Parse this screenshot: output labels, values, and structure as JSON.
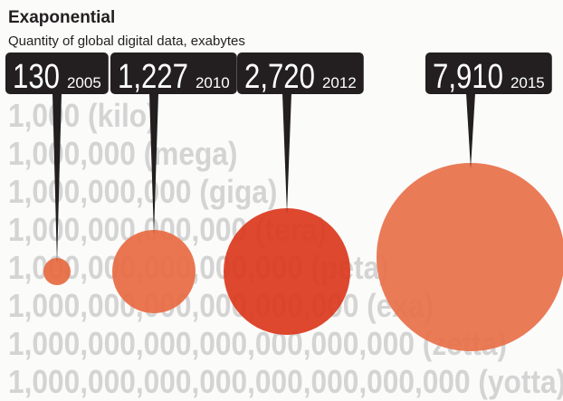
{
  "chart_data": {
    "type": "bubble",
    "title": "Exaponential",
    "subtitle": "Quantity of global digital data, exabytes",
    "background_scale_labels": [
      "1,000 (kilo)",
      "1,000,000 (mega)",
      "1,000,000,000 (giga)",
      "1,000,000,000,000 (tera)",
      "1,000,000,000,000,000 (peta)",
      "1,000,000,000,000,000,000 (exa)",
      "1,000,000,000,000,000,000,000 (zetta)",
      "1,000,000,000,000,000,000,000,000 (yotta)"
    ],
    "points": [
      {
        "year": "2005",
        "value": 130,
        "label": "130",
        "color": "#e76a42"
      },
      {
        "year": "2010",
        "value": 1227,
        "label": "1,227",
        "color": "#e86c44"
      },
      {
        "year": "2012",
        "value": 2720,
        "label": "2,720",
        "color": "#da3a1f"
      },
      {
        "year": "2015",
        "value": 7910,
        "label": "7,910",
        "color": "#e8714a"
      }
    ],
    "label_box_color": "#231f20",
    "scale_text_color": "#d4d4d4"
  }
}
